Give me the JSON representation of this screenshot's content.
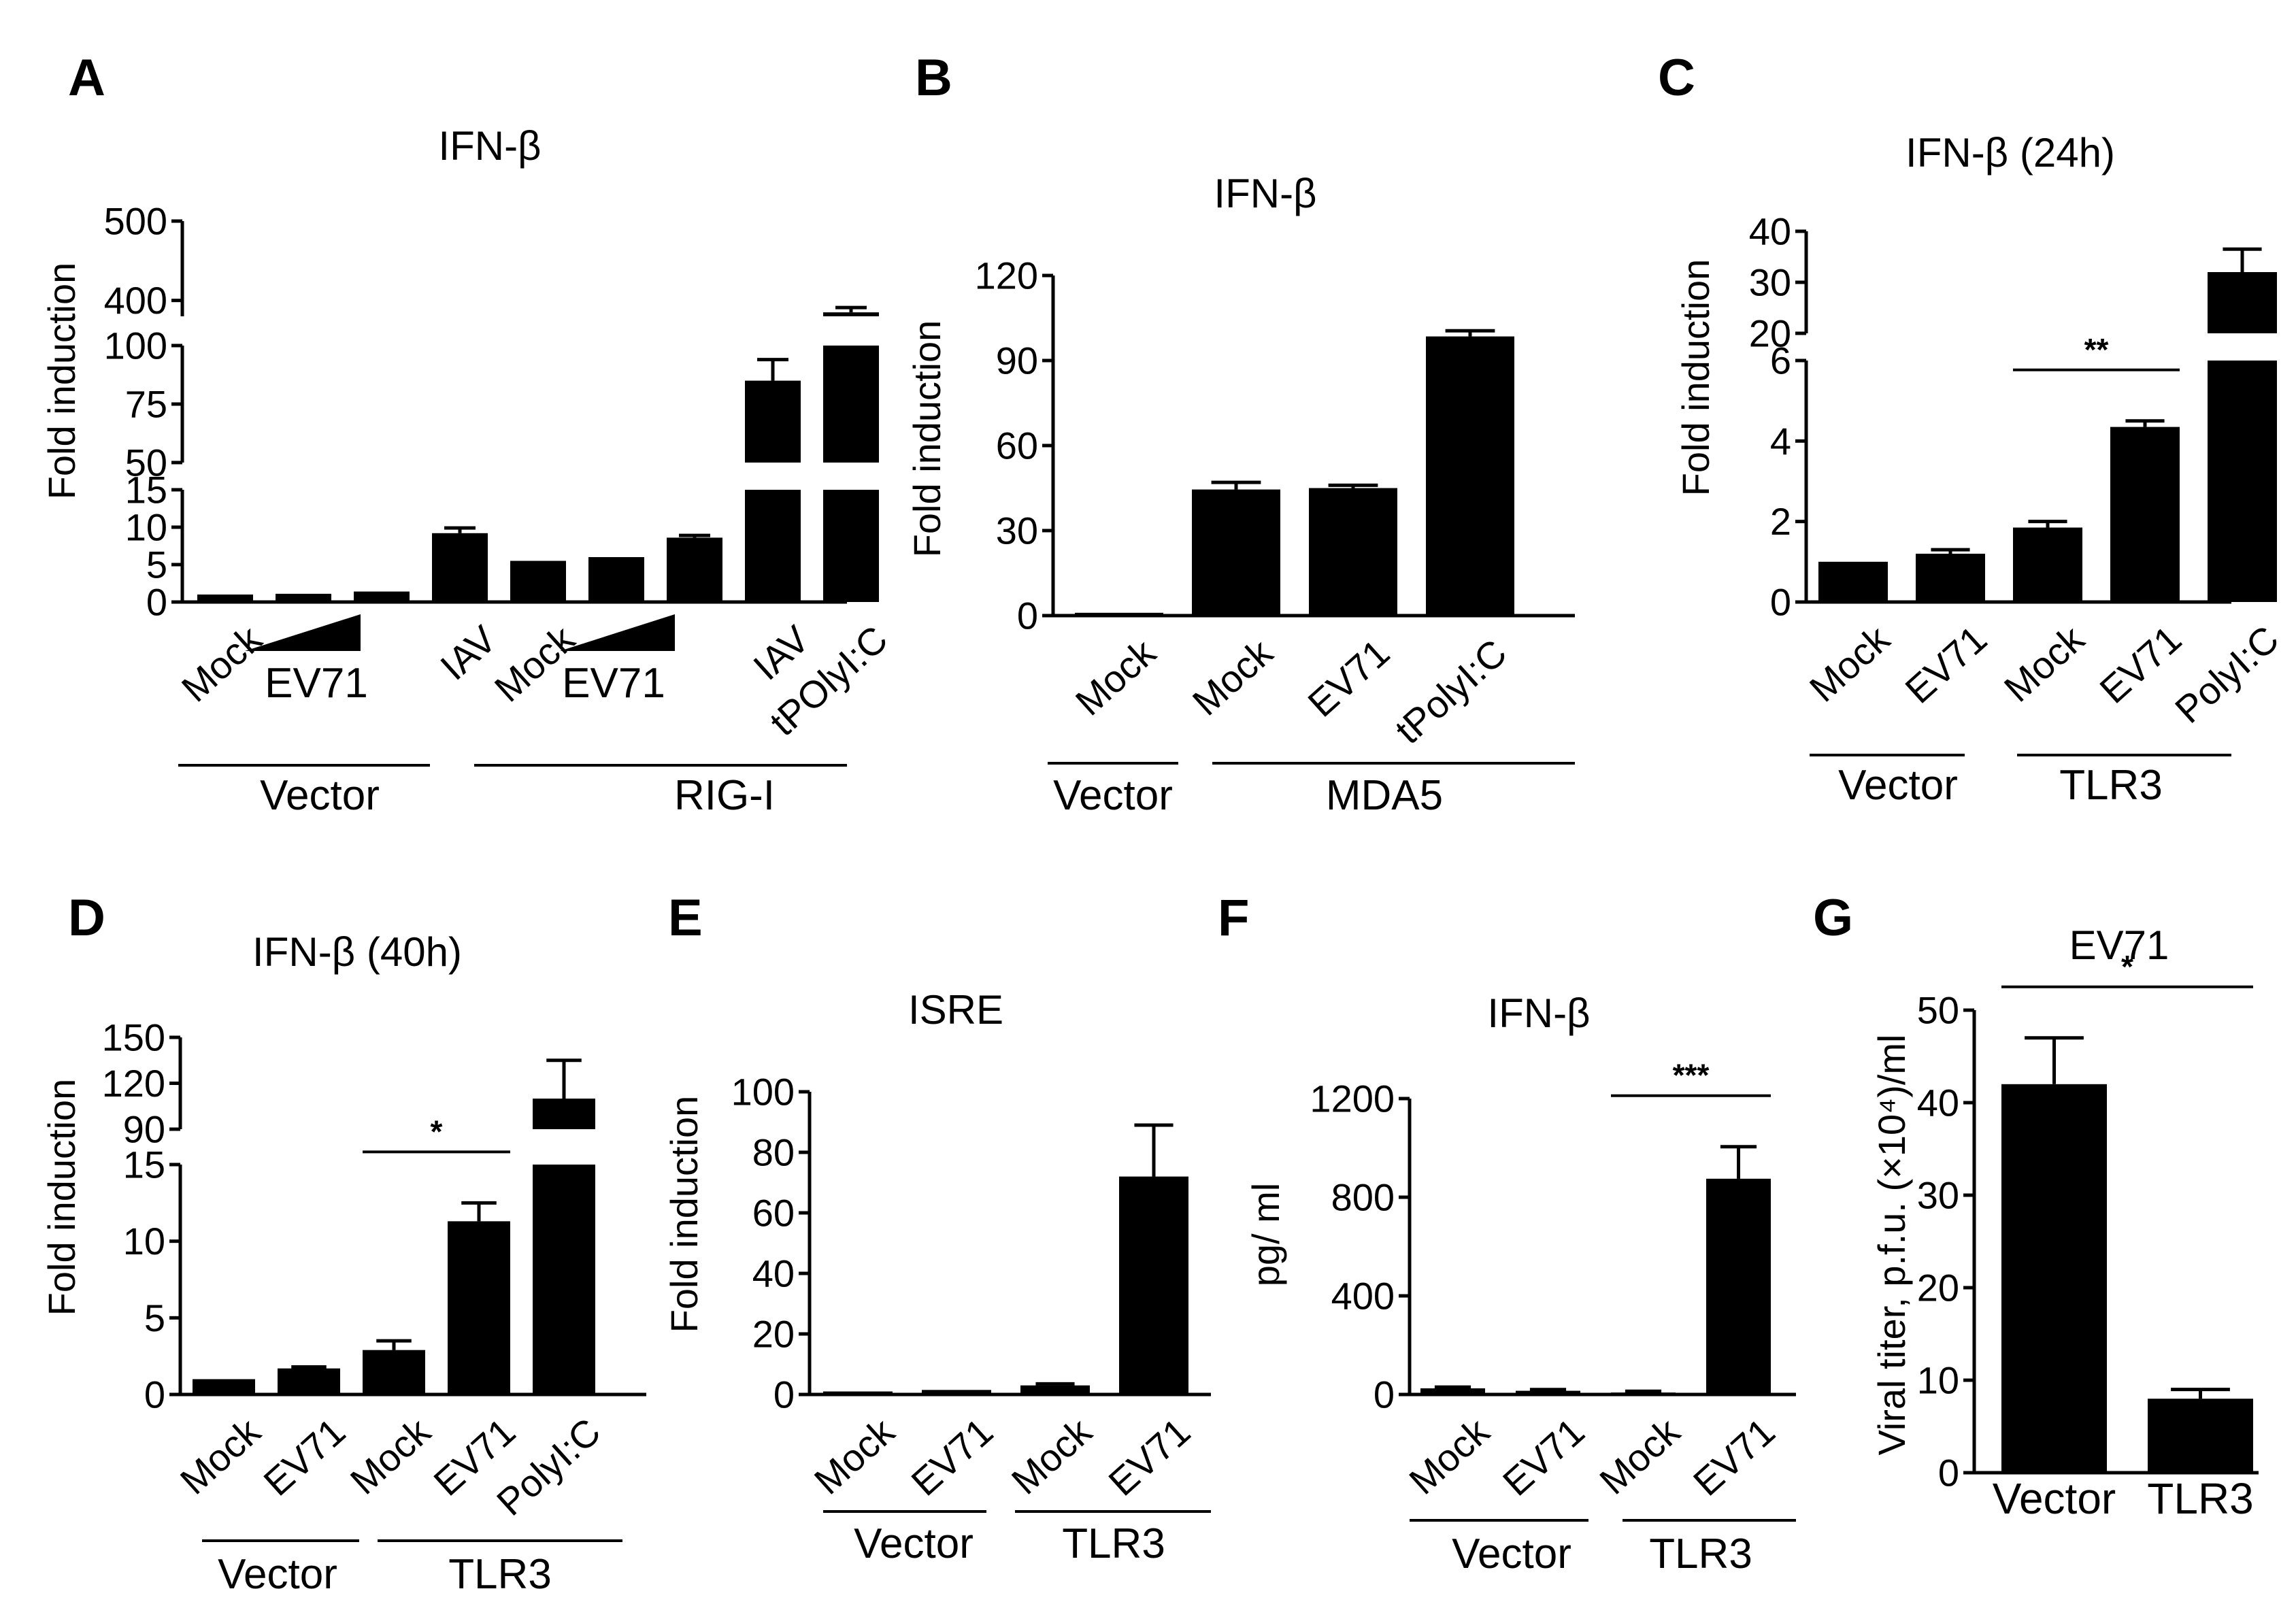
{
  "chart_data": [
    {
      "id": "A",
      "type": "bar",
      "title": "IFN-β",
      "ylabel": "Fold induction",
      "categories": [
        "Mock",
        "EV71 (low)",
        "EV71 (mid)",
        "IAV",
        "Mock",
        "EV71 (low)",
        "EV71 (mid)",
        "IAV",
        "tPOlyI:C"
      ],
      "category_labels": [
        "Mock",
        "",
        "",
        "IAV",
        "Mock",
        "",
        "",
        "IAV",
        "tPOlyI:C"
      ],
      "values": [
        1,
        1.1,
        1.4,
        9.2,
        5.5,
        6,
        8.6,
        85,
        385
      ],
      "errors": [
        0,
        0,
        0,
        0.7,
        0,
        0,
        0.3,
        9,
        6
      ],
      "axis_segments": [
        {
          "range": [
            0,
            15
          ],
          "ticks": [
            0,
            5,
            10,
            15
          ]
        },
        {
          "range": [
            50,
            100
          ],
          "ticks": [
            50,
            75,
            100
          ]
        },
        {
          "range": [
            380,
            500
          ],
          "ticks": [
            400,
            500
          ]
        }
      ],
      "ramps": [
        {
          "label": "EV71"
        },
        {
          "label": "EV71"
        }
      ],
      "groups": [
        {
          "label": "Vector"
        },
        {
          "label": "RIG-I"
        }
      ]
    },
    {
      "id": "B",
      "type": "bar",
      "title": "IFN-β",
      "ylabel": "Fold induction",
      "categories": [
        "Mock",
        "Mock",
        "EV71",
        "tPolyI:C"
      ],
      "values": [
        1,
        44.5,
        45,
        98.5
      ],
      "errors": [
        0,
        2.5,
        1,
        2
      ],
      "ylim": [
        0,
        120
      ],
      "yticks": [
        0,
        30,
        60,
        90,
        120
      ],
      "groups": [
        {
          "label": "Vector"
        },
        {
          "label": "MDA5"
        }
      ]
    },
    {
      "id": "C",
      "type": "bar",
      "title": "IFN-β  (24h)",
      "ylabel": "Fold induction",
      "categories": [
        "Mock",
        "EV71",
        "Mock",
        "EV71",
        "PolyI:C"
      ],
      "values": [
        1,
        1.2,
        1.85,
        4.35,
        32
      ],
      "errors": [
        0,
        0.1,
        0.15,
        0.15,
        4.5
      ],
      "axis_segments": [
        {
          "range": [
            0,
            6
          ],
          "ticks": [
            0,
            2,
            4,
            6
          ]
        },
        {
          "range": [
            20,
            40
          ],
          "ticks": [
            20,
            30,
            40
          ]
        }
      ],
      "significance": [
        {
          "label": "**",
          "from": 2,
          "to": 3
        }
      ],
      "groups": [
        {
          "label": "Vector"
        },
        {
          "label": "TLR3"
        }
      ]
    },
    {
      "id": "D",
      "type": "bar",
      "title": "IFN-β (40h)",
      "ylabel": "Fold induction",
      "categories": [
        "Mock",
        "EV71",
        "Mock",
        "EV71",
        "PolyI:C"
      ],
      "values": [
        1,
        1.7,
        2.9,
        11.3,
        110
      ],
      "errors": [
        0,
        0.1,
        0.6,
        1.2,
        25
      ],
      "axis_segments": [
        {
          "range": [
            0,
            15
          ],
          "ticks": [
            0,
            5,
            10,
            15
          ]
        },
        {
          "range": [
            90,
            150
          ],
          "ticks": [
            90,
            120,
            150
          ]
        }
      ],
      "significance": [
        {
          "label": "*",
          "from": 2,
          "to": 3
        }
      ],
      "groups": [
        {
          "label": "Vector"
        },
        {
          "label": "TLR3"
        }
      ]
    },
    {
      "id": "E",
      "type": "bar",
      "title": "ISRE",
      "ylabel": "Fold induction",
      "categories": [
        "Mock",
        "EV71",
        "Mock",
        "EV71"
      ],
      "values": [
        1,
        1.5,
        3,
        72
      ],
      "errors": [
        0,
        0,
        0.5,
        17
      ],
      "ylim": [
        0,
        100
      ],
      "yticks": [
        0,
        20,
        40,
        60,
        80,
        100
      ],
      "groups": [
        {
          "label": "Vector"
        },
        {
          "label": "TLR3"
        }
      ]
    },
    {
      "id": "F",
      "type": "bar",
      "title": "IFN-β",
      "ylabel": "pg/ ml",
      "categories": [
        "Mock",
        "EV71",
        "Mock",
        "EV71"
      ],
      "values": [
        25,
        15,
        8,
        875
      ],
      "errors": [
        5,
        5,
        5,
        130
      ],
      "ylim": [
        0,
        1200
      ],
      "yticks": [
        0,
        400,
        800,
        1200
      ],
      "significance": [
        {
          "label": "***",
          "from": 2,
          "to": 3
        }
      ],
      "groups": [
        {
          "label": "Vector"
        },
        {
          "label": "TLR3"
        }
      ]
    },
    {
      "id": "G",
      "type": "bar",
      "title": "EV71",
      "ylabel": "Viral titer, p.f.u. (×10⁴)/ml",
      "categories": [
        "Vector",
        "TLR3"
      ],
      "values": [
        42,
        8
      ],
      "errors": [
        5,
        1
      ],
      "ylim": [
        0,
        50
      ],
      "yticks": [
        0,
        10,
        20,
        30,
        40,
        50
      ],
      "significance": [
        {
          "label": "*",
          "from": 0,
          "to": 1
        }
      ]
    }
  ]
}
